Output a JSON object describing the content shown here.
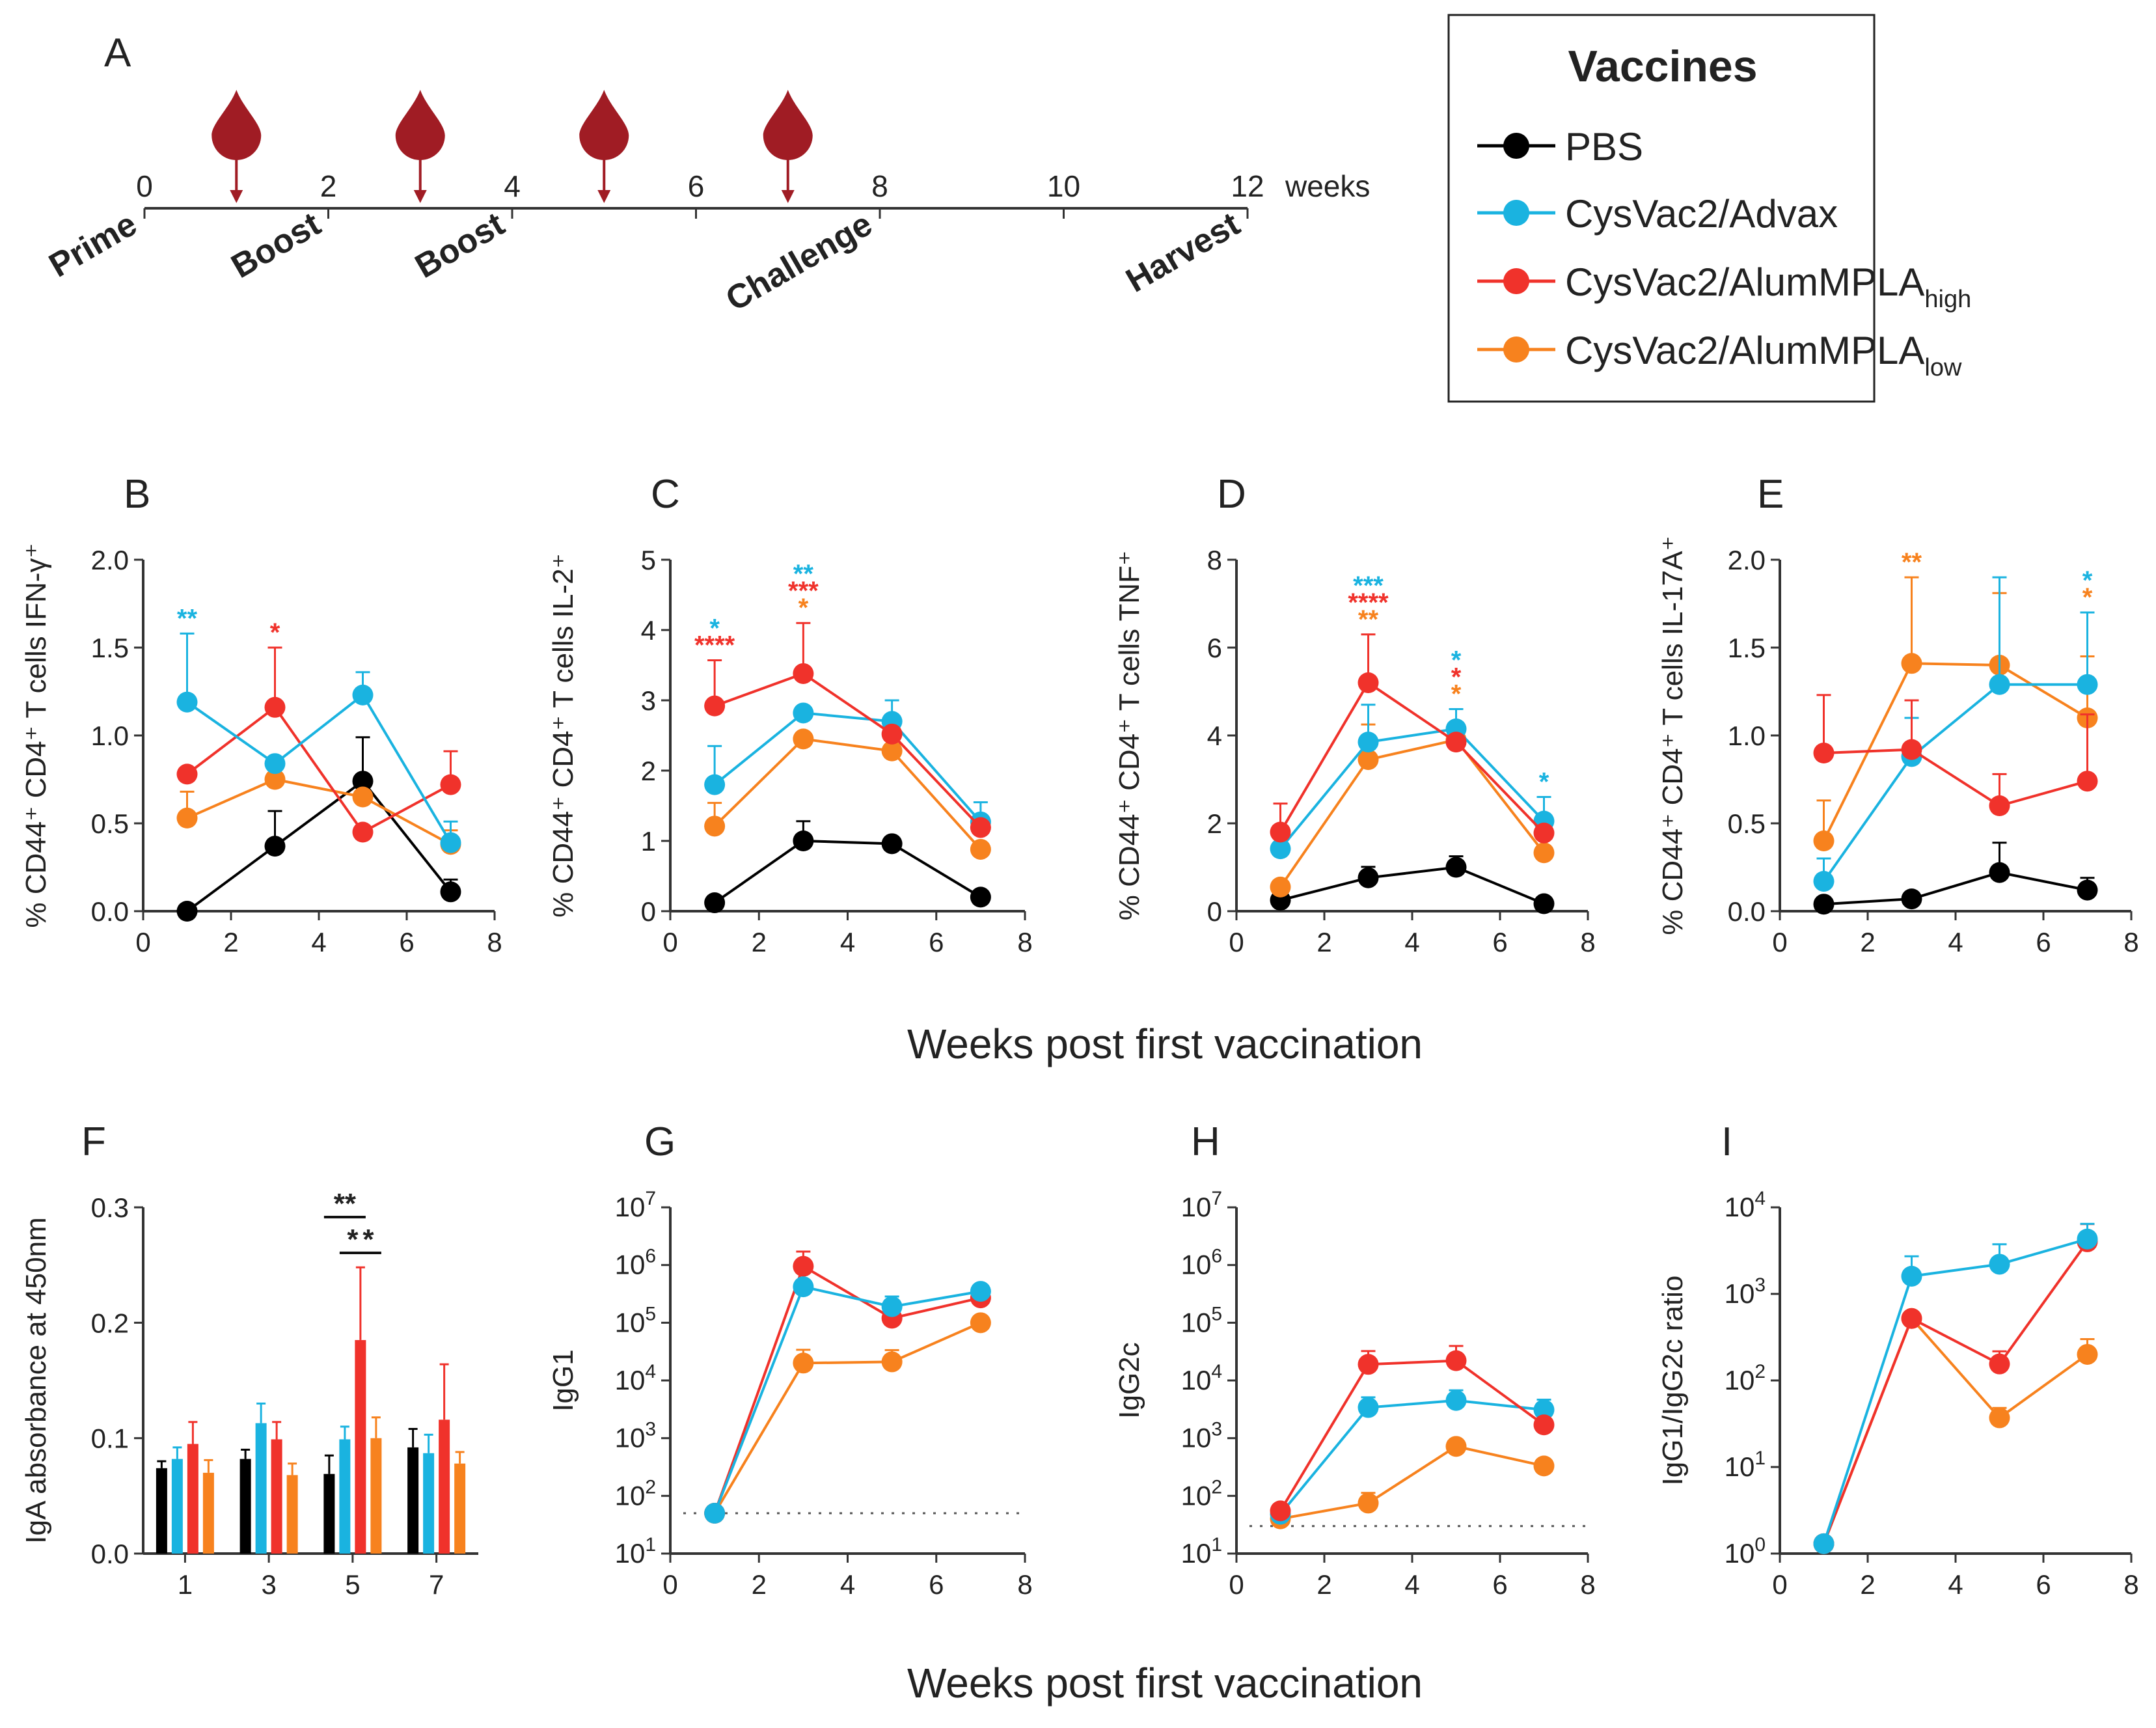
{
  "colors": {
    "PBS": "#000000",
    "Advax": "#1ab3e0",
    "High": "#f0322b",
    "Low": "#f7821e",
    "blood": "#a01c24"
  },
  "legend": {
    "title": "Vaccines",
    "items": [
      {
        "key": "PBS",
        "label": "PBS",
        "sub": ""
      },
      {
        "key": "Advax",
        "label": "CysVac2/Advax",
        "sub": ""
      },
      {
        "key": "High",
        "label": "CysVac2/AlumMPLA",
        "sub": "high"
      },
      {
        "key": "Low",
        "label": "CysVac2/AlumMPLA",
        "sub": "low"
      }
    ]
  },
  "timeline": {
    "panel": "A",
    "ticks": [
      "0",
      "2",
      "4",
      "6",
      "8",
      "10",
      "12"
    ],
    "tick_weeks": [
      0,
      2,
      4,
      6,
      8,
      10,
      12
    ],
    "unit": "weeks",
    "blood_weeks": [
      1,
      3,
      5,
      7
    ],
    "events": [
      {
        "label": "Prime",
        "week": 0
      },
      {
        "label": "Boost",
        "week": 2
      },
      {
        "label": "Boost",
        "week": 4
      },
      {
        "label": "Challenge",
        "week": 8
      },
      {
        "label": "Harvest",
        "week": 12
      }
    ]
  },
  "shared_xlabel_top": "Weeks post first vaccination",
  "shared_xlabel_bottom": "Weeks post first vaccination",
  "chart_data": [
    {
      "id": "B",
      "type": "line",
      "ylabel": "% CD44⁺ CD4⁺ T cells IFN-γ⁺",
      "ylim": [
        0,
        2
      ],
      "yticks": [
        "0.0",
        "0.5",
        "1.0",
        "1.5",
        "2.0"
      ],
      "xlim": [
        0,
        8
      ],
      "xticks": [
        "0",
        "2",
        "4",
        "6",
        "8"
      ],
      "x": [
        1,
        3,
        5,
        7
      ],
      "series": [
        {
          "name": "PBS",
          "values": [
            0.0,
            0.37,
            0.74,
            0.11
          ],
          "err": [
            0,
            0.2,
            0.25,
            0.07
          ]
        },
        {
          "name": "Low",
          "values": [
            0.53,
            0.75,
            0.65,
            0.38
          ],
          "err": [
            0.15,
            0,
            0,
            0.08
          ]
        },
        {
          "name": "High",
          "values": [
            0.78,
            1.16,
            0.45,
            0.72
          ],
          "err": [
            0,
            0.34,
            0,
            0.19
          ]
        },
        {
          "name": "Advax",
          "values": [
            1.19,
            0.84,
            1.23,
            0.39
          ],
          "err": [
            0.39,
            0,
            0.13,
            0.12
          ]
        }
      ],
      "stars": [
        {
          "x": 1,
          "rows": [
            {
              "t": "**",
              "c": "Advax"
            }
          ]
        },
        {
          "x": 3,
          "rows": [
            {
              "t": "*",
              "c": "High"
            }
          ]
        }
      ]
    },
    {
      "id": "C",
      "type": "line",
      "ylabel": "% CD44⁺ CD4⁺ T cells IL-2⁺",
      "ylim": [
        0,
        5
      ],
      "yticks": [
        "0",
        "1",
        "2",
        "3",
        "4",
        "5"
      ],
      "xlim": [
        0,
        8
      ],
      "xticks": [
        "0",
        "2",
        "4",
        "6",
        "8"
      ],
      "x": [
        1,
        3,
        5,
        7
      ],
      "series": [
        {
          "name": "PBS",
          "values": [
            0.12,
            1.0,
            0.96,
            0.2
          ],
          "err": [
            0,
            0.28,
            0,
            0
          ]
        },
        {
          "name": "Low",
          "values": [
            1.21,
            2.45,
            2.28,
            0.88
          ],
          "err": [
            0.33,
            0,
            0,
            0
          ]
        },
        {
          "name": "Advax",
          "values": [
            1.8,
            2.82,
            2.7,
            1.27
          ],
          "err": [
            0.55,
            0,
            0.3,
            0.28
          ]
        },
        {
          "name": "High",
          "values": [
            2.92,
            3.38,
            2.52,
            1.19
          ],
          "err": [
            0.65,
            0.72,
            0,
            0
          ]
        }
      ],
      "stars": [
        {
          "x": 1,
          "rows": [
            {
              "t": "*",
              "c": "Advax"
            },
            {
              "t": "****",
              "c": "High"
            }
          ]
        },
        {
          "x": 3,
          "rows": [
            {
              "t": "**",
              "c": "Advax"
            },
            {
              "t": "***",
              "c": "High"
            },
            {
              "t": "*",
              "c": "Low"
            }
          ]
        }
      ]
    },
    {
      "id": "D",
      "type": "line",
      "ylabel": "% CD44⁺ CD4⁺ T cells TNF⁺",
      "ylim": [
        0,
        8
      ],
      "yticks": [
        "0",
        "2",
        "4",
        "6",
        "8"
      ],
      "xlim": [
        0,
        8
      ],
      "xticks": [
        "0",
        "2",
        "4",
        "6",
        "8"
      ],
      "x": [
        1,
        3,
        5,
        7
      ],
      "series": [
        {
          "name": "PBS",
          "values": [
            0.25,
            0.76,
            1.0,
            0.17
          ],
          "err": [
            0,
            0.25,
            0.25,
            0
          ]
        },
        {
          "name": "Low",
          "values": [
            0.55,
            3.45,
            3.9,
            1.33
          ],
          "err": [
            0,
            0.8,
            0,
            0
          ]
        },
        {
          "name": "Advax",
          "values": [
            1.42,
            3.85,
            4.15,
            2.05
          ],
          "err": [
            0,
            0.85,
            0.45,
            0.55
          ]
        },
        {
          "name": "High",
          "values": [
            1.8,
            5.2,
            3.85,
            1.78
          ],
          "err": [
            0.65,
            1.1,
            0,
            0
          ]
        }
      ],
      "stars": [
        {
          "x": 3,
          "rows": [
            {
              "t": "***",
              "c": "Advax"
            },
            {
              "t": "****",
              "c": "High"
            },
            {
              "t": "**",
              "c": "Low"
            }
          ]
        },
        {
          "x": 5,
          "rows": [
            {
              "t": "*",
              "c": "Advax"
            },
            {
              "t": "*",
              "c": "High"
            },
            {
              "t": "*",
              "c": "Low"
            }
          ]
        },
        {
          "x": 7,
          "rows": [
            {
              "t": "*",
              "c": "Advax"
            }
          ]
        }
      ]
    },
    {
      "id": "E",
      "type": "line",
      "ylabel": "% CD44⁺ CD4⁺ T cells IL-17A⁺",
      "ylim": [
        0,
        2
      ],
      "yticks": [
        "0.0",
        "0.5",
        "1.0",
        "1.5",
        "2.0"
      ],
      "xlim": [
        0,
        8
      ],
      "xticks": [
        "0",
        "2",
        "4",
        "6",
        "8"
      ],
      "x": [
        1,
        3,
        5,
        7
      ],
      "series": [
        {
          "name": "PBS",
          "values": [
            0.04,
            0.07,
            0.22,
            0.12
          ],
          "err": [
            0,
            0,
            0.17,
            0.07
          ]
        },
        {
          "name": "Low",
          "values": [
            0.4,
            1.41,
            1.4,
            1.1
          ],
          "err": [
            0.23,
            0.49,
            0.41,
            0.35
          ]
        },
        {
          "name": "Advax",
          "values": [
            0.17,
            0.88,
            1.29,
            1.29
          ],
          "err": [
            0.13,
            0.22,
            0.61,
            0.41
          ]
        },
        {
          "name": "High",
          "values": [
            0.9,
            0.92,
            0.6,
            0.74
          ],
          "err": [
            0.33,
            0.28,
            0.18,
            0.38
          ]
        }
      ],
      "stars": [
        {
          "x": 3,
          "rows": [
            {
              "t": "**",
              "c": "Low"
            }
          ]
        },
        {
          "x": 7,
          "rows": [
            {
              "t": "*",
              "c": "Advax"
            },
            {
              "t": "*",
              "c": "Low"
            }
          ]
        }
      ]
    },
    {
      "id": "F",
      "type": "bar",
      "ylabel": "IgA absorbance at 450nm",
      "ylim": [
        0,
        0.3
      ],
      "yticks": [
        "0.0",
        "0.1",
        "0.2",
        "0.3"
      ],
      "categories": [
        "1",
        "3",
        "5",
        "7"
      ],
      "series": [
        {
          "name": "PBS",
          "values": [
            0.074,
            0.082,
            0.069,
            0.092
          ],
          "err": [
            0.006,
            0.008,
            0.016,
            0.016
          ]
        },
        {
          "name": "Advax",
          "values": [
            0.082,
            0.113,
            0.099,
            0.087
          ],
          "err": [
            0.01,
            0.017,
            0.011,
            0.016
          ]
        },
        {
          "name": "High",
          "values": [
            0.095,
            0.099,
            0.185,
            0.116
          ],
          "err": [
            0.019,
            0.015,
            0.063,
            0.048
          ]
        },
        {
          "name": "Low",
          "values": [
            0.07,
            0.068,
            0.1,
            0.078
          ],
          "err": [
            0.011,
            0.01,
            0.018,
            0.01
          ]
        }
      ],
      "brackets": [
        {
          "cat": "5",
          "from": "PBS",
          "to": "High",
          "label": "**"
        },
        {
          "cat": "5",
          "from": "Advax",
          "to": "High",
          "label": "*"
        },
        {
          "cat": "5",
          "from": "High",
          "to": "Low",
          "label": "*"
        }
      ]
    },
    {
      "id": "G",
      "type": "line",
      "scale": "log",
      "ylabel": "IgG1",
      "ylim_exp": [
        1,
        7
      ],
      "yticks": [
        "10¹",
        "10²",
        "10³",
        "10⁴",
        "10⁵",
        "10⁶",
        "10⁷"
      ],
      "xlim": [
        0,
        8
      ],
      "xticks": [
        "0",
        "2",
        "4",
        "6",
        "8"
      ],
      "x": [
        1,
        3,
        5,
        7
      ],
      "baseline": 50,
      "series": [
        {
          "name": "Low",
          "values": [
            50,
            20000,
            21000,
            100000
          ],
          "errf": [
            1,
            1.7,
            1.6,
            1.3
          ]
        },
        {
          "name": "High",
          "values": [
            50,
            950000,
            120000,
            270000
          ],
          "errf": [
            1,
            1.8,
            1,
            1
          ]
        },
        {
          "name": "Advax",
          "values": [
            50,
            420000,
            190000,
            350000
          ],
          "errf": [
            1,
            1,
            1.5,
            1
          ]
        }
      ]
    },
    {
      "id": "H",
      "type": "line",
      "scale": "log",
      "ylabel": "IgG2c",
      "ylim_exp": [
        1,
        7
      ],
      "yticks": [
        "10¹",
        "10²",
        "10³",
        "10⁴",
        "10⁵",
        "10⁶",
        "10⁷"
      ],
      "xlim": [
        0,
        8
      ],
      "xticks": [
        "0",
        "2",
        "4",
        "6",
        "8"
      ],
      "x": [
        1,
        3,
        5,
        7
      ],
      "baseline": 30,
      "series": [
        {
          "name": "Low",
          "values": [
            40,
            75,
            720,
            330
          ],
          "errf": [
            1,
            1.5,
            1,
            1
          ]
        },
        {
          "name": "Advax",
          "values": [
            48,
            3400,
            4500,
            3100
          ],
          "errf": [
            1,
            1.5,
            1.5,
            1.5
          ]
        },
        {
          "name": "High",
          "values": [
            55,
            19000,
            22000,
            1700
          ],
          "errf": [
            1,
            1.7,
            1.8,
            1
          ]
        }
      ]
    },
    {
      "id": "I",
      "type": "line",
      "scale": "log",
      "ylabel": "IgG1/IgG2c ratio",
      "ylim_exp": [
        0,
        4
      ],
      "yticks": [
        "10⁰",
        "10¹",
        "10²",
        "10³",
        "10⁴"
      ],
      "xlim": [
        0,
        8
      ],
      "xticks": [
        "0",
        "2",
        "4",
        "6",
        "8"
      ],
      "x": [
        1,
        3,
        5,
        7
      ],
      "series": [
        {
          "name": "Low",
          "values": [
            1.3,
            520,
            37,
            200
          ],
          "errf": [
            1,
            1,
            1.3,
            1.5
          ]
        },
        {
          "name": "High",
          "values": [
            1.3,
            520,
            155,
            4000
          ],
          "errf": [
            1,
            1,
            1.4,
            1.6
          ]
        },
        {
          "name": "Advax",
          "values": [
            1.3,
            1600,
            2200,
            4300
          ],
          "errf": [
            1,
            1.7,
            1.7,
            1.5
          ]
        }
      ]
    }
  ]
}
